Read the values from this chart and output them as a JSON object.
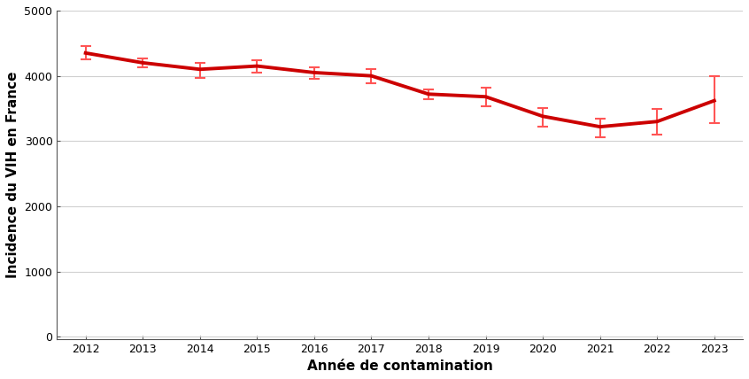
{
  "years": [
    2012,
    2013,
    2014,
    2015,
    2016,
    2017,
    2018,
    2019,
    2020,
    2021,
    2022,
    2023
  ],
  "values": [
    4350,
    4200,
    4100,
    4150,
    4050,
    4000,
    3720,
    3680,
    3380,
    3220,
    3300,
    3620
  ],
  "ci_lower": [
    4250,
    4130,
    3970,
    4050,
    3950,
    3880,
    3645,
    3530,
    3220,
    3060,
    3100,
    3275
  ],
  "ci_upper": [
    4460,
    4265,
    4200,
    4240,
    4130,
    4110,
    3790,
    3825,
    3510,
    3350,
    3490,
    3990
  ],
  "line_color": "#cc0000",
  "ci_color": "#ff5555",
  "ylabel": "Incidence du VIH en France",
  "xlabel": "Année de contamination",
  "ylim": [
    -30,
    5000
  ],
  "yticks": [
    0,
    1000,
    2000,
    3000,
    4000,
    5000
  ],
  "background_color": "#ffffff",
  "grid_color": "#d0d0d0",
  "line_width": 2.8,
  "capsize": 4,
  "elinewidth": 1.5,
  "spine_color": "#555555",
  "tick_label_fontsize": 9,
  "axis_label_fontsize": 11
}
